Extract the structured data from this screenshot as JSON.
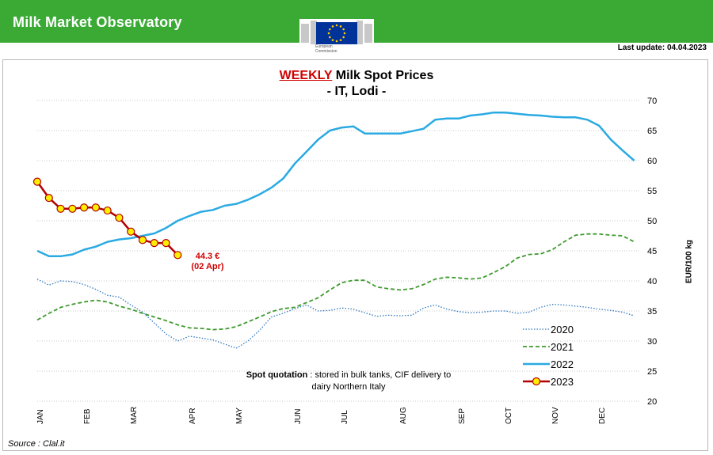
{
  "header": {
    "title": "Milk Market Observatory",
    "logo_caption_line1": "European",
    "logo_caption_line2": "Commission",
    "last_update": "Last update: 04.04.2023"
  },
  "colors": {
    "banner": "#3aaa35",
    "s2020": "#2f77c0",
    "s2021": "#3f9a2f",
    "s2022": "#2aaae2",
    "s2023_line": "#b30000",
    "s2023_marker": "#ffee00",
    "annotation": "#d00000"
  },
  "footer": {
    "source": "Source : Clal.it"
  },
  "note": {
    "bold": "Spot quotation",
    "text": " : stored in bulk tanks, CIF delivery to dairy Northern Italy"
  },
  "annotation": {
    "line1": "44.3 €",
    "line2": "(02 Apr)"
  },
  "chart_data": {
    "type": "line",
    "title_highlight": "WEEKLY",
    "title_rest": " Milk Spot Prices",
    "subtitle": "- IT, Lodi -",
    "ylabel": "EUR/100 kg",
    "xlabel": "",
    "ylim": [
      20,
      70
    ],
    "yticks": [
      20,
      25,
      30,
      35,
      40,
      45,
      50,
      55,
      60,
      65,
      70
    ],
    "x_unit": "week of year",
    "xlim": [
      1,
      52.5
    ],
    "months": [
      {
        "label": "JAN",
        "week": 1.2
      },
      {
        "label": "FEB",
        "week": 5.2
      },
      {
        "label": "MAR",
        "week": 9.2
      },
      {
        "label": "APR",
        "week": 14.2
      },
      {
        "label": "MAY",
        "week": 18.2
      },
      {
        "label": "JUN",
        "week": 23.2
      },
      {
        "label": "JUL",
        "week": 27.2
      },
      {
        "label": "AUG",
        "week": 32.2
      },
      {
        "label": "SEP",
        "week": 37.2
      },
      {
        "label": "OCT",
        "week": 41.2
      },
      {
        "label": "NOV",
        "week": 45.2
      },
      {
        "label": "DEC",
        "week": 49.2
      }
    ],
    "legend": {
      "position": "bottom-right"
    },
    "grid": "horizontal-dotted",
    "series": [
      {
        "name": "2020",
        "style": "dotted",
        "color": "#2f77c0",
        "x": [
          1,
          2,
          3,
          4,
          5,
          6,
          7,
          8,
          9,
          10,
          11,
          12,
          13,
          14,
          15,
          16,
          17,
          18,
          19,
          20,
          21,
          22,
          23,
          24,
          25,
          26,
          27,
          28,
          29,
          30,
          31,
          32,
          33,
          34,
          35,
          36,
          37,
          38,
          39,
          40,
          41,
          42,
          43,
          44,
          45,
          46,
          47,
          48,
          49,
          50,
          51,
          52
        ],
        "values": [
          40.3,
          39.3,
          40.0,
          39.9,
          39.4,
          38.6,
          37.6,
          37.3,
          36.0,
          34.8,
          33.0,
          31.2,
          30.0,
          30.8,
          30.5,
          30.2,
          29.5,
          28.8,
          30.0,
          31.8,
          34.0,
          34.6,
          35.4,
          36.0,
          35.0,
          35.1,
          35.5,
          35.3,
          34.7,
          34.1,
          34.3,
          34.2,
          34.3,
          35.5,
          36.0,
          35.3,
          34.9,
          34.7,
          34.8,
          35.0,
          35.0,
          34.6,
          34.8,
          35.6,
          36.1,
          36.0,
          35.8,
          35.6,
          35.3,
          35.1,
          34.8,
          34.2
        ]
      },
      {
        "name": "2021",
        "style": "dashed",
        "color": "#3f9a2f",
        "x": [
          1,
          2,
          3,
          4,
          5,
          6,
          7,
          8,
          9,
          10,
          11,
          12,
          13,
          14,
          15,
          16,
          17,
          18,
          19,
          20,
          21,
          22,
          23,
          24,
          25,
          26,
          27,
          28,
          29,
          30,
          31,
          32,
          33,
          34,
          35,
          36,
          37,
          38,
          39,
          40,
          41,
          42,
          43,
          44,
          45,
          46,
          47,
          48,
          49,
          50,
          51,
          52
        ],
        "values": [
          33.5,
          34.6,
          35.6,
          36.1,
          36.5,
          36.8,
          36.5,
          35.8,
          35.3,
          34.6,
          34.0,
          33.4,
          32.7,
          32.2,
          32.1,
          31.9,
          32.0,
          32.4,
          33.2,
          34.0,
          34.9,
          35.4,
          35.6,
          36.4,
          37.2,
          38.5,
          39.7,
          40.1,
          40.1,
          39.0,
          38.7,
          38.5,
          38.7,
          39.4,
          40.3,
          40.6,
          40.5,
          40.3,
          40.5,
          41.4,
          42.4,
          43.8,
          44.4,
          44.5,
          45.2,
          46.5,
          47.6,
          47.8,
          47.8,
          47.6,
          47.5,
          46.5
        ]
      },
      {
        "name": "2022",
        "style": "solid",
        "color": "#2aaae2",
        "x": [
          1,
          2,
          3,
          4,
          5,
          6,
          7,
          8,
          9,
          10,
          11,
          12,
          13,
          14,
          15,
          16,
          17,
          18,
          19,
          20,
          21,
          22,
          23,
          24,
          25,
          26,
          27,
          28,
          29,
          30,
          31,
          32,
          33,
          34,
          35,
          36,
          37,
          38,
          39,
          40,
          41,
          42,
          43,
          44,
          45,
          46,
          47,
          48,
          49,
          50,
          51,
          52
        ],
        "values": [
          45.0,
          44.1,
          44.1,
          44.4,
          45.2,
          45.7,
          46.5,
          46.9,
          47.1,
          47.5,
          47.9,
          48.8,
          50.0,
          50.8,
          51.5,
          51.8,
          52.5,
          52.8,
          53.5,
          54.4,
          55.5,
          57.0,
          59.5,
          61.5,
          63.5,
          65.0,
          65.5,
          65.7,
          64.5,
          64.5,
          64.5,
          64.5,
          64.9,
          65.3,
          66.8,
          67.0,
          67.0,
          67.5,
          67.7,
          68.0,
          68.0,
          67.8,
          67.6,
          67.5,
          67.3,
          67.2,
          67.2,
          66.8,
          65.8,
          63.5,
          61.7,
          60.0
        ]
      },
      {
        "name": "2023",
        "style": "solid-markers",
        "color": "#b30000",
        "x": [
          1,
          2,
          3,
          4,
          5,
          6,
          7,
          8,
          9,
          10,
          11,
          12,
          13
        ],
        "values": [
          56.5,
          53.8,
          52.0,
          52.0,
          52.2,
          52.2,
          51.7,
          50.5,
          48.2,
          46.8,
          46.3,
          46.3,
          44.3
        ]
      }
    ]
  }
}
